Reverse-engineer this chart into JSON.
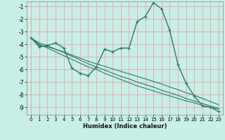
{
  "xlabel": "Humidex (Indice chaleur)",
  "bg_color": "#c8eee8",
  "grid_color": "#f0a0a0",
  "line_color": "#2a7a6a",
  "xlim": [
    -0.5,
    23.5
  ],
  "ylim": [
    -9.6,
    -0.6
  ],
  "yticks": [
    -9,
    -8,
    -7,
    -6,
    -5,
    -4,
    -3,
    -2,
    -1
  ],
  "xticks": [
    0,
    1,
    2,
    3,
    4,
    5,
    6,
    7,
    8,
    9,
    10,
    11,
    12,
    13,
    14,
    15,
    16,
    17,
    18,
    19,
    20,
    21,
    22,
    23
  ],
  "series": [
    [
      -3.5,
      -4.2,
      -4.1,
      -3.9,
      -4.3,
      -5.9,
      -6.3,
      -6.5,
      -5.8,
      -4.4,
      -4.6,
      -4.3,
      -4.3,
      -2.2,
      -1.8,
      -0.7,
      -1.2,
      -2.9,
      -5.6,
      -7.1,
      -8.1,
      -8.9,
      -9.0,
      -9.35
    ],
    [
      -3.5,
      -4.1,
      -4.2,
      -4.4,
      -4.6,
      -4.85,
      -5.1,
      -5.35,
      -5.55,
      -5.75,
      -5.95,
      -6.15,
      -6.35,
      -6.55,
      -6.75,
      -6.95,
      -7.15,
      -7.4,
      -7.6,
      -7.85,
      -8.05,
      -8.3,
      -8.55,
      -8.8
    ],
    [
      -3.5,
      -4.0,
      -4.3,
      -4.6,
      -4.9,
      -5.2,
      -5.5,
      -5.8,
      -6.0,
      -6.3,
      -6.55,
      -6.8,
      -7.05,
      -7.3,
      -7.5,
      -7.7,
      -7.9,
      -8.1,
      -8.3,
      -8.5,
      -8.65,
      -8.85,
      -9.0,
      -9.15
    ],
    [
      -3.5,
      -3.9,
      -4.1,
      -4.4,
      -4.65,
      -4.95,
      -5.25,
      -5.55,
      -5.8,
      -6.05,
      -6.3,
      -6.55,
      -6.75,
      -7.0,
      -7.2,
      -7.4,
      -7.65,
      -7.85,
      -8.05,
      -8.3,
      -8.5,
      -8.7,
      -8.9,
      -9.1
    ]
  ]
}
